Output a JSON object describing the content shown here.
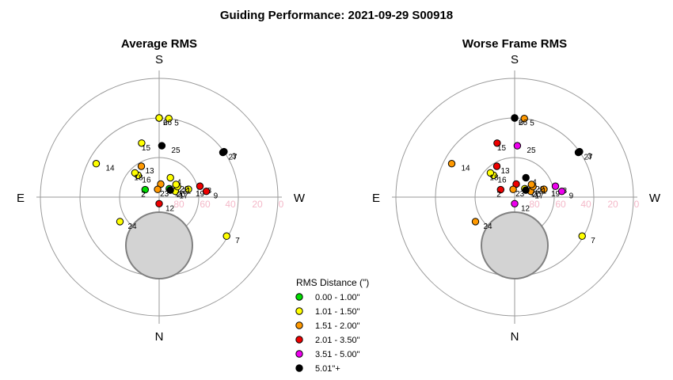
{
  "title": "Guiding Performance: 2021-09-29 S00918",
  "cardinals": {
    "north": "N",
    "south": "S",
    "east": "E",
    "west": "W"
  },
  "ring_labels": [
    "80",
    "60",
    "40",
    "20",
    "0"
  ],
  "legend": {
    "title": "RMS Distance (\")",
    "items": [
      {
        "label": "0.00 - 1.00\"",
        "color": "#00dd00"
      },
      {
        "label": "1.01 - 1.50\"",
        "color": "#ffff00"
      },
      {
        "label": "1.51 - 2.00\"",
        "color": "#ff9900"
      },
      {
        "label": "2.01 - 3.50\"",
        "color": "#ee0000"
      },
      {
        "label": "3.51 - 5.00\"",
        "color": "#ee00ee"
      },
      {
        "label": "5.01\"+",
        "color": "#000000"
      }
    ]
  },
  "chart_data": [
    {
      "type": "scatter",
      "projection": "polar altitude-azimuth",
      "title": "Average RMS",
      "radial_axis": "altitude (deg)",
      "ring_values": [
        80,
        60,
        40,
        20,
        0
      ],
      "points": [
        {
          "label": "2",
          "az": 118,
          "alt": 78,
          "class": 0
        },
        {
          "label": "3",
          "az": 235,
          "alt": 30,
          "class": 5
        },
        {
          "label": "4",
          "az": 210,
          "alt": 73,
          "class": 1
        },
        {
          "label": "5",
          "az": 187,
          "alt": 30,
          "class": 1
        },
        {
          "label": "6",
          "az": 180,
          "alt": 30,
          "class": 5
        },
        {
          "label": "7",
          "az": 300,
          "alt": 31,
          "class": 1
        },
        {
          "label": "8",
          "az": 255,
          "alt": 58,
          "class": 3
        },
        {
          "label": "9",
          "az": 263,
          "alt": 54,
          "class": 3
        },
        {
          "label": "10",
          "az": 187,
          "alt": 80,
          "class": 2
        },
        {
          "label": "11",
          "az": 230,
          "alt": 80,
          "class": 0
        },
        {
          "label": "12",
          "az": 0,
          "alt": 85,
          "class": 3
        },
        {
          "label": "13",
          "az": 150,
          "alt": 63,
          "class": 2
        },
        {
          "label": "14",
          "az": 118,
          "alt": 36,
          "class": 1
        },
        {
          "label": "15",
          "az": 162,
          "alt": 47,
          "class": 1
        },
        {
          "label": "16",
          "az": 136,
          "alt": 67,
          "class": 1
        },
        {
          "label": "17",
          "az": 250,
          "alt": 77,
          "class": 1
        },
        {
          "label": "18",
          "az": 135,
          "alt": 64,
          "class": 1
        },
        {
          "label": "19",
          "az": 255,
          "alt": 67,
          "class": 1
        },
        {
          "label": "20",
          "az": 238,
          "alt": 80,
          "class": 5
        },
        {
          "label": "21",
          "az": 240,
          "alt": 74,
          "class": 1
        },
        {
          "label": "22",
          "az": 233,
          "alt": 74,
          "class": 1
        },
        {
          "label": "23",
          "az": 169,
          "alt": 84,
          "class": 2
        },
        {
          "label": "24",
          "az": 58,
          "alt": 55,
          "class": 1
        },
        {
          "label": "25",
          "az": 183,
          "alt": 51,
          "class": 5
        },
        {
          "label": "26",
          "az": 180,
          "alt": 30,
          "class": 1
        },
        {
          "label": "27",
          "az": 235,
          "alt": 31,
          "class": 5
        }
      ]
    },
    {
      "type": "scatter",
      "projection": "polar altitude-azimuth",
      "title": "Worse Frame RMS",
      "radial_axis": "altitude (deg)",
      "ring_values": [
        80,
        60,
        40,
        20,
        0
      ],
      "points": [
        {
          "label": "2",
          "az": 118,
          "alt": 78,
          "class": 3
        },
        {
          "label": "3",
          "az": 235,
          "alt": 30,
          "class": 5
        },
        {
          "label": "4",
          "az": 210,
          "alt": 73,
          "class": 5
        },
        {
          "label": "5",
          "az": 187,
          "alt": 30,
          "class": 2
        },
        {
          "label": "6",
          "az": 180,
          "alt": 30,
          "class": 5
        },
        {
          "label": "7",
          "az": 300,
          "alt": 31,
          "class": 1
        },
        {
          "label": "8",
          "az": 255,
          "alt": 58,
          "class": 4
        },
        {
          "label": "9",
          "az": 263,
          "alt": 54,
          "class": 4
        },
        {
          "label": "10",
          "az": 187,
          "alt": 80,
          "class": 3
        },
        {
          "label": "11",
          "az": 230,
          "alt": 80,
          "class": 1
        },
        {
          "label": "12",
          "az": 0,
          "alt": 85,
          "class": 4
        },
        {
          "label": "13",
          "az": 150,
          "alt": 63,
          "class": 3
        },
        {
          "label": "14",
          "az": 118,
          "alt": 36,
          "class": 2
        },
        {
          "label": "15",
          "az": 162,
          "alt": 47,
          "class": 3
        },
        {
          "label": "16",
          "az": 136,
          "alt": 67,
          "class": 1
        },
        {
          "label": "17",
          "az": 250,
          "alt": 77,
          "class": 2
        },
        {
          "label": "18",
          "az": 135,
          "alt": 64,
          "class": 1
        },
        {
          "label": "19",
          "az": 255,
          "alt": 67,
          "class": 2
        },
        {
          "label": "20",
          "az": 238,
          "alt": 80,
          "class": 5
        },
        {
          "label": "21",
          "az": 240,
          "alt": 74,
          "class": 2
        },
        {
          "label": "22",
          "az": 233,
          "alt": 74,
          "class": 2
        },
        {
          "label": "23",
          "az": 169,
          "alt": 84,
          "class": 2
        },
        {
          "label": "24",
          "az": 58,
          "alt": 55,
          "class": 2
        },
        {
          "label": "25",
          "az": 183,
          "alt": 51,
          "class": 4
        },
        {
          "label": "26",
          "az": 180,
          "alt": 30,
          "class": 5
        },
        {
          "label": "27",
          "az": 235,
          "alt": 31,
          "class": 5
        }
      ]
    }
  ]
}
